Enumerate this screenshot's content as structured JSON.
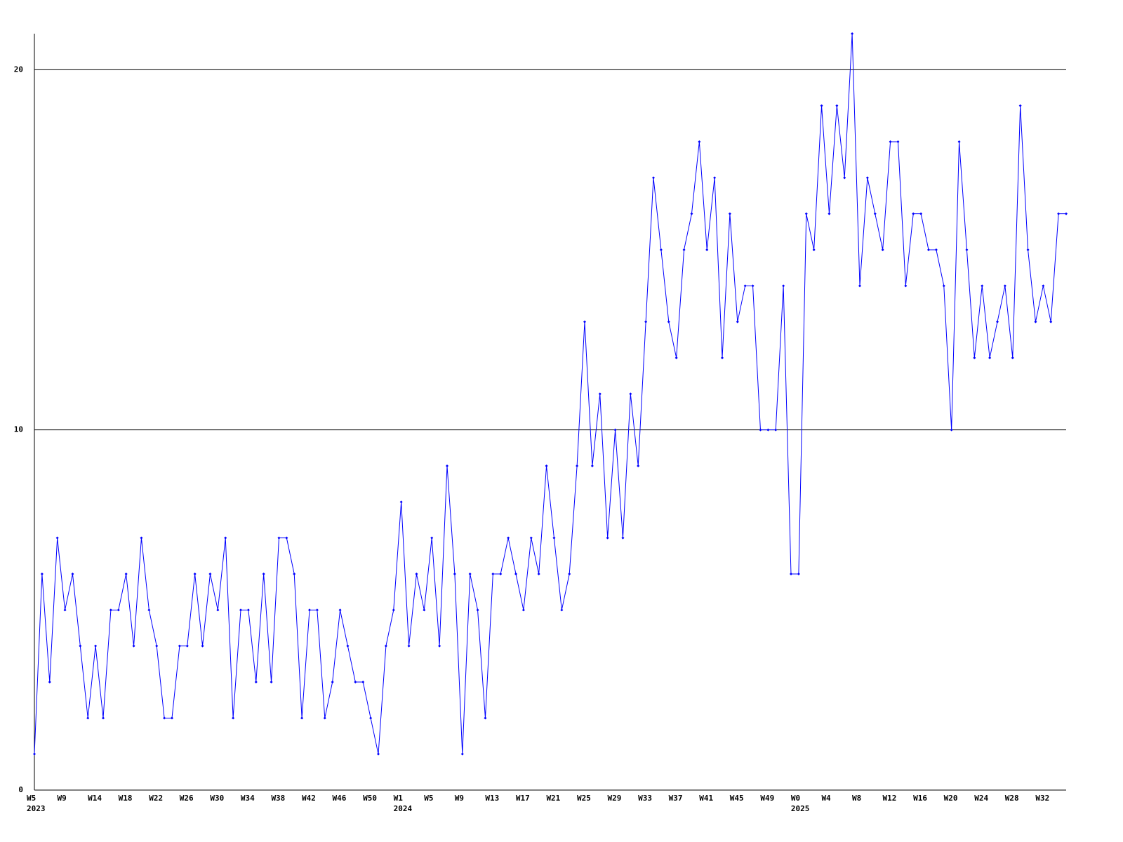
{
  "chart_data": {
    "type": "line",
    "categories": [
      "W5",
      null,
      null,
      null,
      "W9",
      null,
      null,
      null,
      "W14",
      null,
      null,
      null,
      "W18",
      null,
      null,
      null,
      "W22",
      null,
      null,
      null,
      "W26",
      null,
      null,
      null,
      "W30",
      null,
      null,
      null,
      "W34",
      null,
      null,
      null,
      "W38",
      null,
      null,
      null,
      "W42",
      null,
      null,
      null,
      "W46",
      null,
      null,
      null,
      "W50",
      null,
      null,
      null,
      "W1",
      null,
      null,
      null,
      "W5",
      null,
      null,
      null,
      "W9",
      null,
      null,
      null,
      "W13",
      null,
      null,
      null,
      "W17",
      null,
      null,
      null,
      "W21",
      null,
      null,
      null,
      "W25",
      null,
      null,
      null,
      "W29",
      null,
      null,
      null,
      "W33",
      null,
      null,
      null,
      "W37",
      null,
      null,
      null,
      "W41",
      null,
      null,
      null,
      "W45",
      null,
      null,
      null,
      "W49",
      null,
      null,
      null,
      "W0",
      null,
      null,
      null,
      "W4",
      null,
      null,
      null,
      "W8",
      null,
      null,
      null,
      "W12",
      null,
      null,
      null,
      "W16",
      null,
      null,
      null,
      "W20",
      null,
      null,
      null,
      "W24",
      null,
      null,
      null,
      "W28",
      null,
      null,
      null,
      "W32",
      null,
      null,
      null
    ],
    "years": [
      {
        "category": 0,
        "label": "2023"
      },
      {
        "category": 48,
        "label": "2024"
      },
      {
        "category": 100,
        "label": "2025"
      }
    ],
    "series": [
      {
        "color": "#0000ff",
        "values": [
          1,
          6,
          3,
          7,
          5,
          6,
          4,
          2,
          4,
          2,
          5,
          5,
          6,
          4,
          7,
          5,
          4,
          2,
          2,
          4,
          4,
          6,
          4,
          6,
          5,
          7,
          2,
          5,
          5,
          3,
          6,
          3,
          7,
          7,
          6,
          2,
          5,
          5,
          2,
          3,
          5,
          4,
          3,
          3,
          2,
          1,
          4,
          5,
          8,
          4,
          6,
          5,
          7,
          4,
          9,
          6,
          1,
          6,
          5,
          2,
          6,
          6,
          7,
          6,
          5,
          7,
          6,
          9,
          7,
          5,
          6,
          9,
          13,
          9,
          11,
          7,
          10,
          7,
          11,
          9,
          13,
          17,
          15,
          13,
          12,
          15,
          16,
          18,
          15,
          17,
          12,
          16,
          13,
          14,
          14,
          10,
          10,
          10,
          14,
          6,
          6,
          16,
          15,
          19,
          16,
          19,
          17,
          21,
          14,
          17,
          16,
          15,
          18,
          18,
          14,
          16,
          16,
          15,
          15,
          14,
          10,
          18,
          15,
          12,
          14,
          12,
          13,
          14,
          12,
          19,
          15,
          13,
          14,
          13,
          16,
          16
        ]
      }
    ],
    "ylim": [
      0,
      21
    ],
    "yticks": [
      0,
      10,
      20
    ],
    "grid": true
  }
}
